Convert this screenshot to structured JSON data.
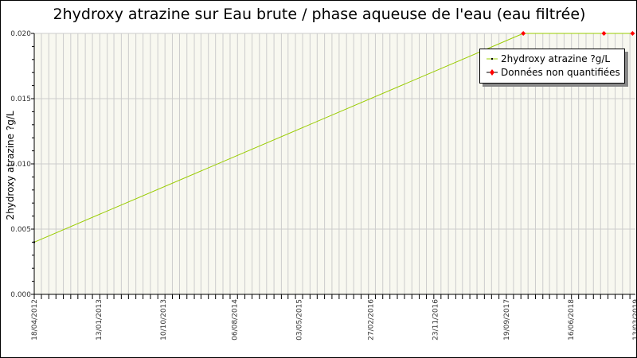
{
  "chart_data": {
    "type": "line",
    "title": "2hydroxy atrazine sur Eau brute / phase aqueuse de l'eau (eau filtrée)",
    "ylabel": "2hydroxy atrazine ?g/L",
    "xlabel": "",
    "ylim": [
      0,
      0.02
    ],
    "xlim": [
      "18/04/2012",
      "13/03/2019"
    ],
    "y_ticks": [
      "0.000",
      "0.005",
      "0.010",
      "0.015",
      "0.020"
    ],
    "x_ticks": [
      "18/04/2012",
      "13/01/2013",
      "10/10/2013",
      "06/08/2014",
      "03/05/2015",
      "27/02/2016",
      "23/11/2016",
      "19/09/2017",
      "16/06/2018",
      "13/03/2019"
    ],
    "grid": true,
    "legend_position": "top-right",
    "series": [
      {
        "name": "2hydroxy atrazine ?g/L",
        "color": "#99cc00",
        "points": [
          [
            "18/04/2012",
            0.004
          ],
          [
            "28/11/2017",
            0.02
          ],
          [
            "01/11/2018",
            0.02
          ],
          [
            "01/03/2019",
            0.02
          ]
        ]
      },
      {
        "name": "Données non quantifiées",
        "color": "#ff0000",
        "points": [
          [
            "28/11/2017",
            0.02
          ],
          [
            "01/11/2018",
            0.02
          ],
          [
            "01/03/2019",
            0.02
          ]
        ]
      }
    ],
    "colors": {
      "plot_background": "#f8f8f0",
      "grid": "#cccccc"
    }
  }
}
